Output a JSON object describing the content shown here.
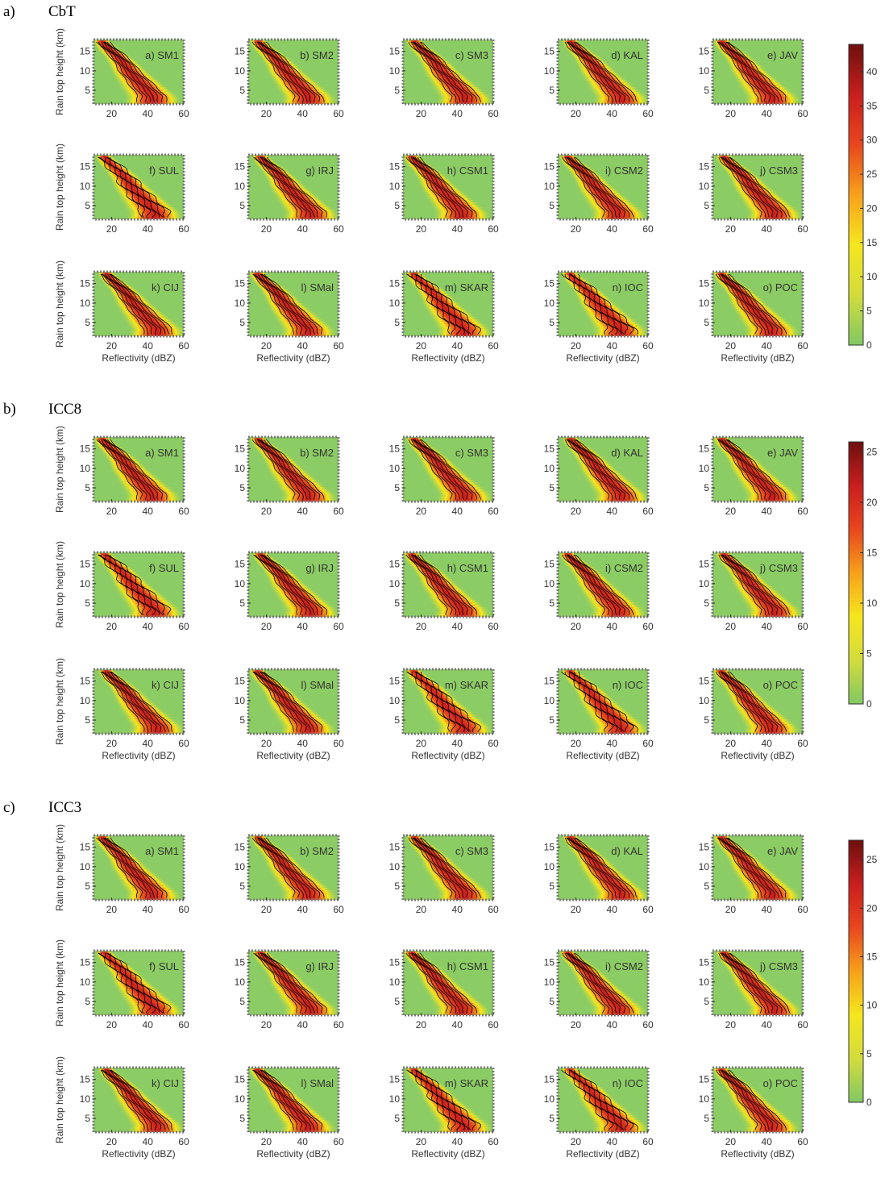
{
  "figure": {
    "sections": [
      {
        "label": "a)",
        "title": "CbT"
      },
      {
        "label": "b)",
        "title": "ICC8"
      },
      {
        "label": "c)",
        "title": "ICC3"
      }
    ]
  },
  "chart_data": {
    "type": "heatmap",
    "panel_grid": {
      "rows": 3,
      "cols": 5
    },
    "panel_titles": [
      "a) SM1",
      "b) SM2",
      "c) SM3",
      "d) KAL",
      "e) JAV",
      "f) SUL",
      "g) IRJ",
      "h) CSM1",
      "i) CSM2",
      "j) CSM3",
      "k) CIJ",
      "l) SMal",
      "m) SKAR",
      "n) IOC",
      "o) POC"
    ],
    "xlabel": "Reflectivity (dBZ)",
    "ylabel": "Rain top height (km)",
    "xlim": [
      10,
      60
    ],
    "ylim": [
      1.5,
      18
    ],
    "xticks": [
      20,
      40,
      60
    ],
    "yticks": [
      5,
      10,
      15
    ],
    "profile_shape": {
      "height_km": [
        17.5,
        16,
        14,
        12,
        10,
        8,
        6,
        4.5,
        3.5,
        2
      ],
      "reflectivity_dbz": [
        16,
        19,
        24,
        28,
        31,
        35,
        39,
        42,
        44,
        44
      ]
    },
    "sections": [
      {
        "name": "CbT",
        "colorbar": {
          "range": [
            0,
            44
          ],
          "ticks": [
            0,
            5,
            10,
            15,
            20,
            25,
            30,
            35,
            40
          ]
        }
      },
      {
        "name": "ICC8",
        "colorbar": {
          "range": [
            0,
            26
          ],
          "ticks": [
            0,
            5,
            10,
            15,
            20,
            25
          ]
        }
      },
      {
        "name": "ICC3",
        "colorbar": {
          "range": [
            0,
            27
          ],
          "ticks": [
            0,
            5,
            10,
            15,
            20,
            25
          ]
        }
      }
    ],
    "colormap": [
      "#82c864",
      "#d2dc3c",
      "#f5e61e",
      "#f7a11a",
      "#e8461e",
      "#c81e1e",
      "#6e0f0f"
    ],
    "background_color": "#8ccc64",
    "contour_color": "#000000"
  }
}
